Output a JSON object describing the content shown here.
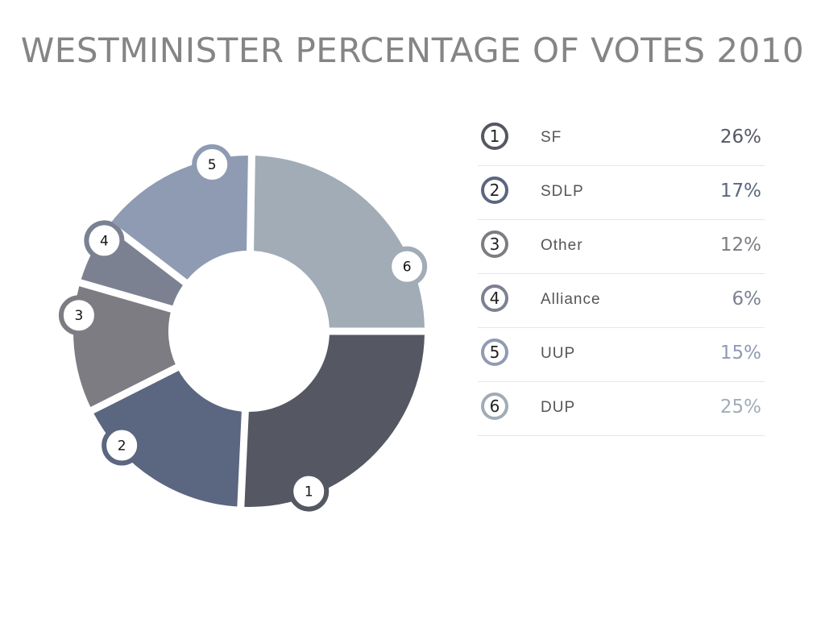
{
  "title": "WESTMINISTER PERCENTAGE OF VOTES 2010",
  "chart_data": {
    "type": "pie",
    "title": "WESTMINISTER PERCENTAGE OF VOTES 2010",
    "donut": true,
    "slices": [
      {
        "index": "1",
        "label": "SF",
        "value": 26,
        "value_label": "26%",
        "color": "#555862"
      },
      {
        "index": "2",
        "label": "SDLP",
        "value": 17,
        "value_label": "17%",
        "color": "#5b6680"
      },
      {
        "index": "3",
        "label": "Other",
        "value": 12,
        "value_label": "12%",
        "color": "#7d7c82"
      },
      {
        "index": "4",
        "label": "Alliance",
        "value": 6,
        "value_label": "6%",
        "color": "#7c8192"
      },
      {
        "index": "5",
        "label": "UUP",
        "value": 15,
        "value_label": "15%",
        "color": "#8f9bb3"
      },
      {
        "index": "6",
        "label": "DUP",
        "value": 25,
        "value_label": "25%",
        "color": "#a1acb6"
      }
    ]
  }
}
